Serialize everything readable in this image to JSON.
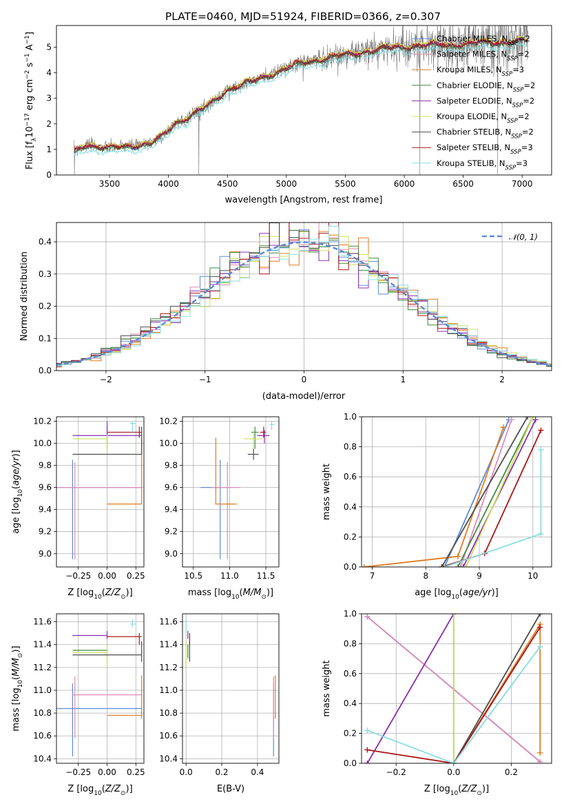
{
  "figure_title": "PLATE=0460, MJD=51924, FIBERID=0366, z=0.307",
  "colors": {
    "chabrier_miles": "#5b8bd8",
    "salpeter_miles": "#e08ab8",
    "kroupa_miles": "#e07b1f",
    "chabrier_elodie": "#3e8a3e",
    "salpeter_elodie": "#8a2db0",
    "kroupa_elodie": "#c9e05a",
    "chabrier_stelib": "#4d4d4d",
    "salpeter_stelib": "#aa1616",
    "kroupa_stelib": "#86dde0",
    "data": "#777777",
    "gaussian": "#5b8bd8"
  },
  "legend_spectrum": [
    {
      "key": "chabrier_miles",
      "pre": "Chabrier MILES, N",
      "sub": "SSP",
      "post": "=2"
    },
    {
      "key": "salpeter_miles",
      "pre": "Salpeter MILES, N",
      "sub": "SSP",
      "post": "=2"
    },
    {
      "key": "kroupa_miles",
      "pre": "Kroupa MILES, N",
      "sub": "SSP",
      "post": "=3"
    },
    {
      "key": "chabrier_elodie",
      "pre": "Chabrier ELODIE, N",
      "sub": "SSP",
      "post": "=2"
    },
    {
      "key": "salpeter_elodie",
      "pre": "Salpeter ELODIE, N",
      "sub": "SSP",
      "post": "=2"
    },
    {
      "key": "kroupa_elodie",
      "pre": "Kroupa ELODIE, N",
      "sub": "SSP",
      "post": "=2"
    },
    {
      "key": "chabrier_stelib",
      "pre": "Chabrier STELIB, N",
      "sub": "SSP",
      "post": "=2"
    },
    {
      "key": "salpeter_stelib",
      "pre": "Salpeter STELIB, N",
      "sub": "SSP",
      "post": "=3"
    },
    {
      "key": "kroupa_stelib",
      "pre": "Kroupa STELIB, N",
      "sub": "SSP",
      "post": "=3"
    }
  ],
  "chart_data": [
    {
      "id": "spectrum",
      "type": "line",
      "xlabel": "wavelength [Angstrom, rest frame]",
      "ylabel": "Flux [f_λ 10^-17 erg cm^-2 s^-1 A^-1]",
      "xlim": [
        3050,
        7250
      ],
      "ylim": [
        0,
        5.85
      ],
      "xticks": [
        3500,
        4000,
        4500,
        5000,
        5500,
        6000,
        6500,
        7000
      ],
      "yticks": [
        0,
        1,
        2,
        3,
        4,
        5
      ],
      "grid": false,
      "legend": "upper right, no frame",
      "continuum": {
        "x": [
          3200,
          3300,
          3500,
          3700,
          3850,
          3950,
          4050,
          4200,
          4350,
          4500,
          4700,
          4900,
          5100,
          5300,
          5500,
          5700,
          5900,
          6100,
          6300,
          6500,
          6700,
          6900,
          7050
        ],
        "y": [
          0.9,
          1.2,
          1.05,
          1.15,
          1.25,
          1.5,
          2.0,
          2.35,
          2.75,
          3.35,
          3.65,
          4.0,
          4.35,
          4.55,
          4.7,
          4.85,
          5.0,
          5.05,
          5.1,
          5.1,
          5.2,
          5.2,
          5.25
        ]
      },
      "model_offsets": [
        0.0,
        0.03,
        0.05,
        -0.05,
        0.02,
        0.07,
        -0.02,
        0.0,
        -0.2
      ]
    },
    {
      "id": "residual_hist",
      "type": "step",
      "xlabel": "(data-model)/error",
      "ylabel": "Normed distribution",
      "xlim": [
        -2.5,
        2.5
      ],
      "ylim": [
        0,
        0.46
      ],
      "xticks": [
        -2,
        -1,
        0,
        1,
        2
      ],
      "xtick_labels": [
        "−2",
        "−1",
        "0",
        "1",
        "2"
      ],
      "yticks": [
        0.0,
        0.1,
        0.2,
        0.3,
        0.4
      ],
      "grid": true,
      "legend_label": "𝒩(0, 1)",
      "legend_position": "upper right",
      "bin_width": 0.1,
      "gaussian": {
        "mu": 0,
        "sigma": 1
      }
    },
    {
      "id": "age_vs_Z",
      "type": "errorbar",
      "xlabel": "Z [log10(Z/Z⊙)]",
      "ylabel": "age [log10(age/yr)]",
      "xlim": [
        -0.44,
        0.32
      ],
      "ylim": [
        8.88,
        10.24
      ],
      "xticks": [
        -0.25,
        0.0,
        0.25
      ],
      "xtick_labels": [
        "−0.25",
        "0.00",
        "0.25"
      ],
      "yticks": [
        9.0,
        9.2,
        9.4,
        9.6,
        9.8,
        10.0,
        10.2
      ],
      "grid": true,
      "points": [
        {
          "key": "chabrier_miles",
          "x": -0.3,
          "xlo": -0.44,
          "xhi": 0.3,
          "y": 9.6,
          "ylo": 8.95,
          "yhi": 9.85
        },
        {
          "key": "salpeter_miles",
          "x": -0.28,
          "xlo": -0.44,
          "xhi": 0.3,
          "y": 9.6,
          "ylo": 8.95,
          "yhi": 9.83
        },
        {
          "key": "kroupa_miles",
          "x": 0.3,
          "xlo": 0.0,
          "xhi": 0.3,
          "y": 9.45,
          "ylo": 9.45,
          "yhi": 10.05
        },
        {
          "key": "chabrier_elodie",
          "x": 0.0,
          "xlo": 0.0,
          "xhi": 0.0,
          "y": 10.1,
          "ylo": 9.95,
          "yhi": 10.15
        },
        {
          "key": "salpeter_elodie",
          "x": 0.0,
          "xlo": -0.3,
          "xhi": 0.3,
          "y": 10.07,
          "ylo": 10.0,
          "yhi": 10.2
        },
        {
          "key": "kroupa_elodie",
          "x": 0.0,
          "xlo": -0.3,
          "xhi": 0.0,
          "y": 10.04,
          "ylo": 9.93,
          "yhi": 10.08
        },
        {
          "key": "chabrier_stelib",
          "x": 0.3,
          "xlo": -0.3,
          "xhi": 0.3,
          "y": 9.9,
          "ylo": 9.9,
          "yhi": 10.15
        },
        {
          "key": "salpeter_stelib",
          "x": 0.28,
          "xlo": 0.0,
          "xhi": 0.3,
          "y": 10.1,
          "ylo": 10.05,
          "yhi": 10.15
        },
        {
          "key": "kroupa_stelib",
          "x": 0.22,
          "xlo": 0.2,
          "xhi": 0.25,
          "y": 10.18,
          "ylo": 10.1,
          "yhi": 10.2
        }
      ]
    },
    {
      "id": "age_vs_mass",
      "type": "errorbar",
      "xlabel": "mass [log10(M/M⊙)]",
      "ylabel": "",
      "xlim": [
        10.35,
        11.68
      ],
      "ylim": [
        8.88,
        10.24
      ],
      "xticks": [
        10.5,
        11.0,
        11.5
      ],
      "xtick_labels": [
        "10.5",
        "11.0",
        "11.5"
      ],
      "yticks": [
        9.0,
        9.2,
        9.4,
        9.6,
        9.8,
        10.0,
        10.2
      ],
      "grid": true,
      "points": [
        {
          "key": "chabrier_miles",
          "x": 10.87,
          "xlo": 10.6,
          "xhi": 11.0,
          "y": 9.6,
          "ylo": 8.95,
          "yhi": 9.85
        },
        {
          "key": "salpeter_miles",
          "x": 10.97,
          "xlo": 10.75,
          "xhi": 11.15,
          "y": 9.6,
          "ylo": 8.95,
          "yhi": 9.83
        },
        {
          "key": "kroupa_miles",
          "x": 10.81,
          "xlo": 10.8,
          "xhi": 11.1,
          "y": 9.45,
          "ylo": 9.45,
          "yhi": 10.05
        },
        {
          "key": "chabrier_elodie",
          "x": 11.35,
          "xlo": 11.3,
          "xhi": 11.4,
          "y": 10.1,
          "ylo": 9.95,
          "yhi": 10.15
        },
        {
          "key": "salpeter_elodie",
          "x": 11.48,
          "xlo": 11.38,
          "xhi": 11.55,
          "y": 10.07,
          "ylo": 10.0,
          "yhi": 10.12
        },
        {
          "key": "kroupa_elodie",
          "x": 11.33,
          "xlo": 11.2,
          "xhi": 11.45,
          "y": 10.04,
          "ylo": 9.93,
          "yhi": 10.1
        },
        {
          "key": "chabrier_stelib",
          "x": 11.33,
          "xlo": 11.25,
          "xhi": 11.4,
          "y": 9.9,
          "ylo": 9.85,
          "yhi": 9.95
        },
        {
          "key": "salpeter_stelib",
          "x": 11.47,
          "xlo": 11.42,
          "xhi": 11.5,
          "y": 10.1,
          "ylo": 10.05,
          "yhi": 10.15
        },
        {
          "key": "kroupa_stelib",
          "x": 11.58,
          "xlo": 11.55,
          "xhi": 11.62,
          "y": 10.17,
          "ylo": 10.12,
          "yhi": 10.2
        }
      ]
    },
    {
      "id": "cum_age",
      "type": "line",
      "xlabel": "age [log10(age/yr)]",
      "ylabel": "mass weight",
      "xlim": [
        6.8,
        10.35
      ],
      "ylim": [
        0,
        1
      ],
      "xticks": [
        7,
        8,
        9,
        10
      ],
      "xtick_labels": [
        "7",
        "8",
        "9",
        "10"
      ],
      "yticks": [
        0.0,
        0.2,
        0.4,
        0.6,
        0.8,
        1.0
      ],
      "grid": true,
      "series": [
        {
          "key": "chabrier_miles",
          "x": [
            8.35,
            9.55
          ],
          "y": [
            0,
            0.98
          ]
        },
        {
          "key": "salpeter_miles",
          "x": [
            8.65,
            9.6
          ],
          "y": [
            0,
            0.98
          ]
        },
        {
          "key": "kroupa_miles",
          "x": [
            6.85,
            8.6,
            9.45
          ],
          "y": [
            0,
            0.07,
            0.93
          ]
        },
        {
          "key": "chabrier_elodie",
          "x": [
            8.6,
            10.0
          ],
          "y": [
            0,
            1.0
          ]
        },
        {
          "key": "salpeter_elodie",
          "x": [
            8.7,
            10.05
          ],
          "y": [
            0,
            0.98
          ]
        },
        {
          "key": "kroupa_elodie",
          "x": [
            8.75,
            10.0
          ],
          "y": [
            0,
            1.0
          ]
        },
        {
          "key": "chabrier_stelib",
          "x": [
            8.3,
            9.9
          ],
          "y": [
            0,
            1.0
          ]
        },
        {
          "key": "salpeter_stelib",
          "x": [
            8.3,
            9.1,
            10.15
          ],
          "y": [
            0,
            0.09,
            0.91
          ]
        },
        {
          "key": "kroupa_stelib",
          "x": [
            8.35,
            10.15,
            10.15
          ],
          "y": [
            0,
            0.22,
            0.78
          ]
        }
      ]
    },
    {
      "id": "mass_vs_Z",
      "type": "errorbar",
      "xlabel": "Z [log10(Z/Z⊙)]",
      "ylabel": "mass [log10(M/M⊙)]",
      "xlim": [
        -0.44,
        0.32
      ],
      "ylim": [
        10.36,
        11.67
      ],
      "xticks": [
        -0.25,
        0.0,
        0.25
      ],
      "xtick_labels": [
        "−0.25",
        "0.00",
        "0.25"
      ],
      "yticks": [
        10.4,
        10.6,
        10.8,
        11.0,
        11.2,
        11.4,
        11.6
      ],
      "grid": true,
      "points": [
        {
          "key": "chabrier_miles",
          "x": -0.3,
          "xlo": -0.44,
          "xhi": 0.3,
          "y": 10.84,
          "ylo": 10.42,
          "yhi": 11.06
        },
        {
          "key": "salpeter_miles",
          "x": -0.28,
          "xlo": -0.3,
          "xhi": 0.3,
          "y": 10.96,
          "ylo": 10.58,
          "yhi": 11.12
        },
        {
          "key": "kroupa_miles",
          "x": 0.3,
          "xlo": 0.0,
          "xhi": 0.3,
          "y": 10.78,
          "ylo": 10.75,
          "yhi": 11.13
        },
        {
          "key": "chabrier_elodie",
          "x": 0.0,
          "xlo": -0.3,
          "xhi": 0.0,
          "y": 11.35,
          "ylo": 11.28,
          "yhi": 11.4
        },
        {
          "key": "salpeter_elodie",
          "x": 0.0,
          "xlo": -0.3,
          "xhi": 0.0,
          "y": 11.48,
          "ylo": 11.45,
          "yhi": 11.52
        },
        {
          "key": "kroupa_elodie",
          "x": 0.0,
          "xlo": -0.3,
          "xhi": 0.0,
          "y": 11.33,
          "ylo": 11.2,
          "yhi": 11.4
        },
        {
          "key": "chabrier_stelib",
          "x": 0.3,
          "xlo": -0.3,
          "xhi": 0.3,
          "y": 11.31,
          "ylo": 11.25,
          "yhi": 11.43
        },
        {
          "key": "salpeter_stelib",
          "x": 0.28,
          "xlo": 0.0,
          "xhi": 0.3,
          "y": 11.47,
          "ylo": 11.4,
          "yhi": 11.5
        },
        {
          "key": "kroupa_stelib",
          "x": 0.22,
          "xlo": 0.2,
          "xhi": 0.25,
          "y": 11.58,
          "ylo": 11.55,
          "yhi": 11.62
        }
      ]
    },
    {
      "id": "mass_vs_ebv",
      "type": "errorbar",
      "xlabel": "E(B-V)",
      "ylabel": "",
      "xlim": [
        -0.02,
        0.52
      ],
      "ylim": [
        10.36,
        11.67
      ],
      "xticks": [
        0.0,
        0.2,
        0.4
      ],
      "xtick_labels": [
        "0.0",
        "0.2",
        "0.4"
      ],
      "yticks": [
        10.4,
        10.6,
        10.8,
        11.0,
        11.2,
        11.4,
        11.6
      ],
      "grid": true,
      "points": [
        {
          "key": "chabrier_miles",
          "x": 0.49,
          "xlo": 0.49,
          "xhi": 0.49,
          "y": 10.84,
          "ylo": 10.42,
          "yhi": 11.06
        },
        {
          "key": "salpeter_miles",
          "x": 0.49,
          "xlo": 0.49,
          "xhi": 0.49,
          "y": 10.96,
          "ylo": 10.58,
          "yhi": 11.12
        },
        {
          "key": "kroupa_miles",
          "x": 0.5,
          "xlo": 0.5,
          "xhi": 0.5,
          "y": 10.78,
          "ylo": 10.75,
          "yhi": 11.13
        },
        {
          "key": "chabrier_elodie",
          "x": 0.01,
          "xlo": 0.01,
          "xhi": 0.01,
          "y": 11.35,
          "ylo": 11.28,
          "yhi": 11.4
        },
        {
          "key": "salpeter_elodie",
          "x": 0.01,
          "xlo": 0.01,
          "xhi": 0.01,
          "y": 11.48,
          "ylo": 11.45,
          "yhi": 11.52
        },
        {
          "key": "kroupa_elodie",
          "x": 0.0,
          "xlo": 0.0,
          "xhi": 0.0,
          "y": 11.33,
          "ylo": 11.2,
          "yhi": 11.42
        },
        {
          "key": "chabrier_stelib",
          "x": 0.02,
          "xlo": 0.02,
          "xhi": 0.02,
          "y": 11.31,
          "ylo": 11.25,
          "yhi": 11.43
        },
        {
          "key": "salpeter_stelib",
          "x": 0.02,
          "xlo": 0.02,
          "xhi": 0.02,
          "y": 11.47,
          "ylo": 11.4,
          "yhi": 11.5
        },
        {
          "key": "kroupa_stelib",
          "x": 0.0,
          "xlo": 0.0,
          "xhi": 0.0,
          "y": 11.58,
          "ylo": 11.5,
          "yhi": 11.62
        }
      ]
    },
    {
      "id": "cum_Z",
      "type": "line",
      "xlabel": "Z [log10(Z/Z⊙)]",
      "ylabel": "mass weight",
      "xlim": [
        -0.32,
        0.34
      ],
      "ylim": [
        0,
        1
      ],
      "xticks": [
        -0.2,
        0.0,
        0.2
      ],
      "xtick_labels": [
        "−0.2",
        "0.0",
        "0.2"
      ],
      "yticks": [
        0.0,
        0.2,
        0.4,
        0.6,
        0.8,
        1.0
      ],
      "grid": true,
      "series": [
        {
          "key": "chabrier_miles",
          "x": [
            -0.3,
            0.3
          ],
          "y": [
            0.98,
            0.01
          ]
        },
        {
          "key": "salpeter_miles",
          "x": [
            -0.3,
            0.3
          ],
          "y": [
            0.98,
            0.01
          ]
        },
        {
          "key": "kroupa_miles",
          "x": [
            0.0,
            0.3,
            0.3
          ],
          "y": [
            0,
            0.93,
            0.07
          ]
        },
        {
          "key": "chabrier_elodie",
          "x": [
            0.0,
            0.0
          ],
          "y": [
            0,
            1.0
          ]
        },
        {
          "key": "salpeter_elodie",
          "x": [
            -0.3,
            0.0
          ],
          "y": [
            0,
            1.0
          ]
        },
        {
          "key": "kroupa_elodie",
          "x": [
            0.0,
            0.0
          ],
          "y": [
            0,
            1.0
          ]
        },
        {
          "key": "chabrier_stelib",
          "x": [
            0.0,
            0.3
          ],
          "y": [
            0,
            1.0
          ]
        },
        {
          "key": "salpeter_stelib",
          "x": [
            -0.3,
            0.0,
            0.3
          ],
          "y": [
            0.09,
            0,
            0.91
          ]
        },
        {
          "key": "kroupa_stelib",
          "x": [
            -0.3,
            0.0,
            0.3
          ],
          "y": [
            0.22,
            0,
            0.78
          ]
        }
      ]
    }
  ]
}
